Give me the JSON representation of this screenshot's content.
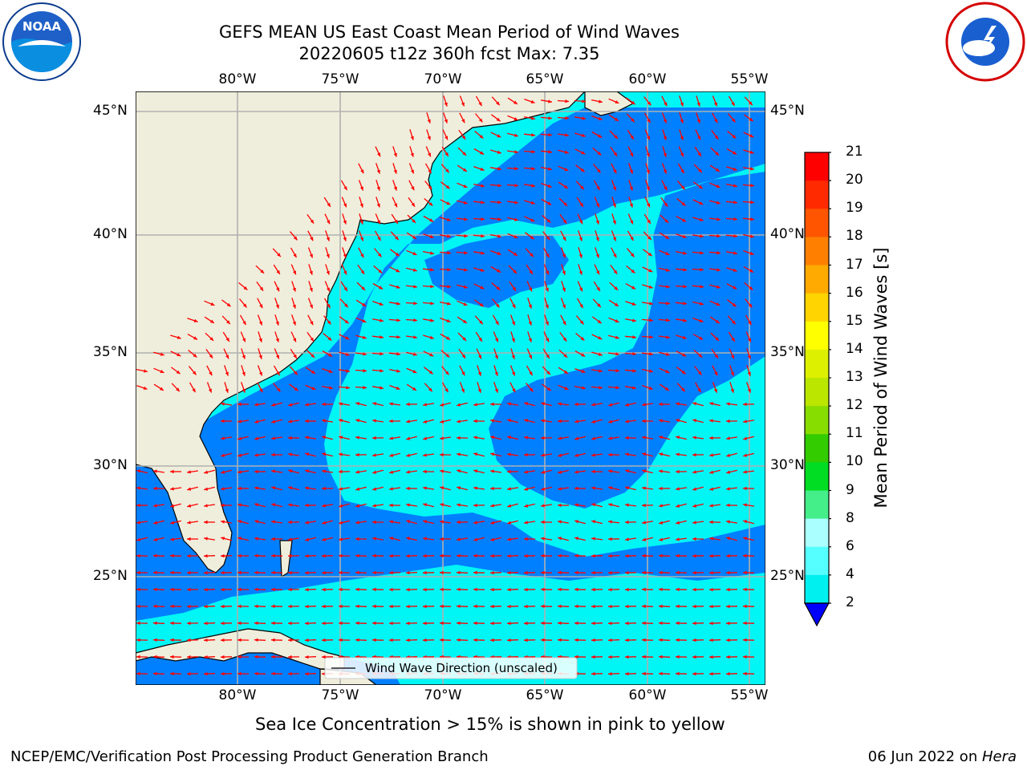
{
  "title_line1": "GEFS MEAN US East Coast Mean Period of Wind Waves",
  "title_line2": "20220605 t12z 360h fcst   Max: 7.35",
  "lon_labels": [
    "80°W",
    "75°W",
    "70°W",
    "65°W",
    "60°W",
    "55°W"
  ],
  "lat_labels": [
    "45°N",
    "40°N",
    "35°N",
    "30°N",
    "25°N"
  ],
  "colorbar": {
    "label": "Mean Period of Wind Waves [s]",
    "ticks": [
      "21",
      "20",
      "19",
      "18",
      "17",
      "16",
      "15",
      "14",
      "13",
      "12",
      "11",
      "10",
      "9",
      "8",
      "6",
      "4",
      "2"
    ],
    "colors": [
      "#ff0000",
      "#ff2a00",
      "#ff5500",
      "#ff8000",
      "#ffaa00",
      "#ffd400",
      "#ffff00",
      "#ddf000",
      "#bbe600",
      "#88dd00",
      "#33cc00",
      "#00dd22",
      "#44ee88",
      "#aaffff",
      "#55ffff",
      "#00f0f0",
      "#0080ff"
    ],
    "underflow_color": "#0000ff"
  },
  "legend_text": "Wind Wave Direction (unscaled)",
  "note": "Sea Ice Concentration > 15% is shown in pink to yellow",
  "footer_left": "NCEP/EMC/Verification Post Processing Product Generation Branch",
  "footer_right_date": "06 Jun 2022 on ",
  "footer_right_host": "Hera",
  "logo_left_text": "NOAA",
  "map_colors": {
    "land": "#efeedc",
    "dark_blue": "#0080ff",
    "cyan": "#00f5f5",
    "arrow": "#ff0000"
  }
}
